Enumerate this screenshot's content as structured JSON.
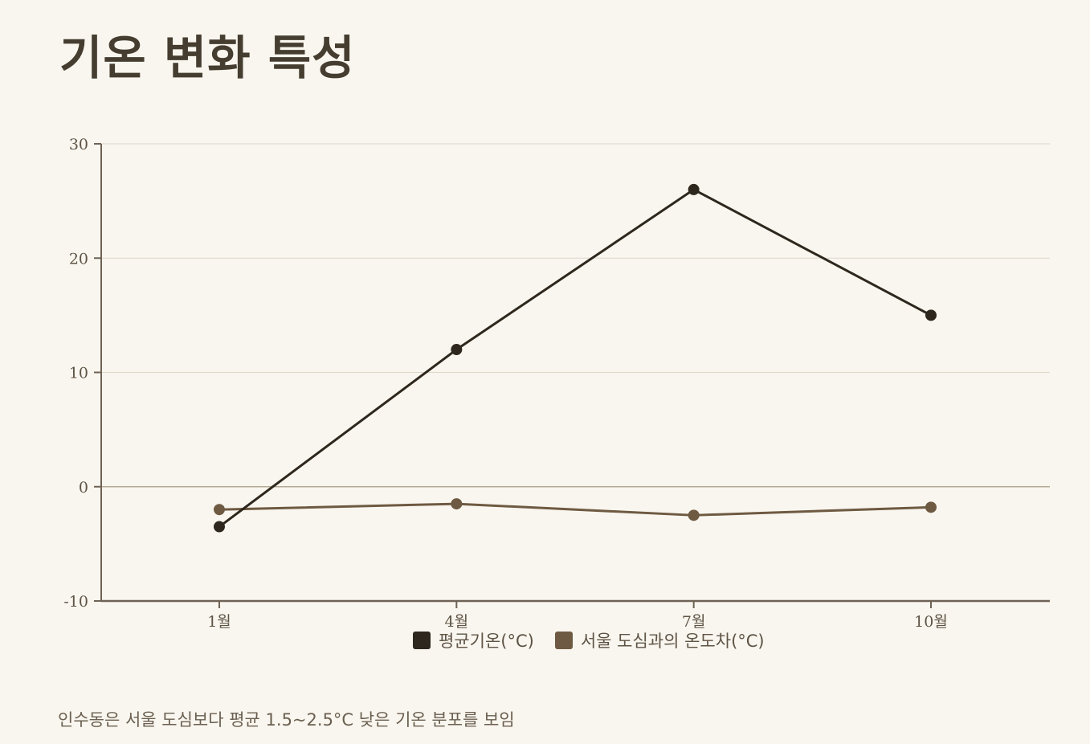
{
  "title": "기온 변화 특성",
  "footnote": "인수동은 서울 도심보다 평균 1.5~2.5°C 낮은 기온 분포를 보임",
  "colors": {
    "background": "#f9f6ef",
    "series1": "#2e271d",
    "series2": "#6e5a42",
    "grid": "#ddd7cb",
    "zero_line": "#b3aa96",
    "axis": "#6e6355"
  },
  "chart_data": {
    "type": "line",
    "categories": [
      "1월",
      "4월",
      "7월",
      "10월"
    ],
    "series": [
      {
        "name": "평균기온(°C)",
        "values": [
          -3.5,
          12,
          26,
          15
        ],
        "color": "#2e271d"
      },
      {
        "name": "서울 도심과의 온도차(°C)",
        "values": [
          -2,
          -1.5,
          -2.5,
          -1.8
        ],
        "color": "#6e5a42"
      }
    ],
    "yticks": [
      -10,
      0,
      10,
      20,
      30
    ],
    "ylim": [
      -10,
      30
    ],
    "grid": true,
    "legend": "bottom-center"
  }
}
